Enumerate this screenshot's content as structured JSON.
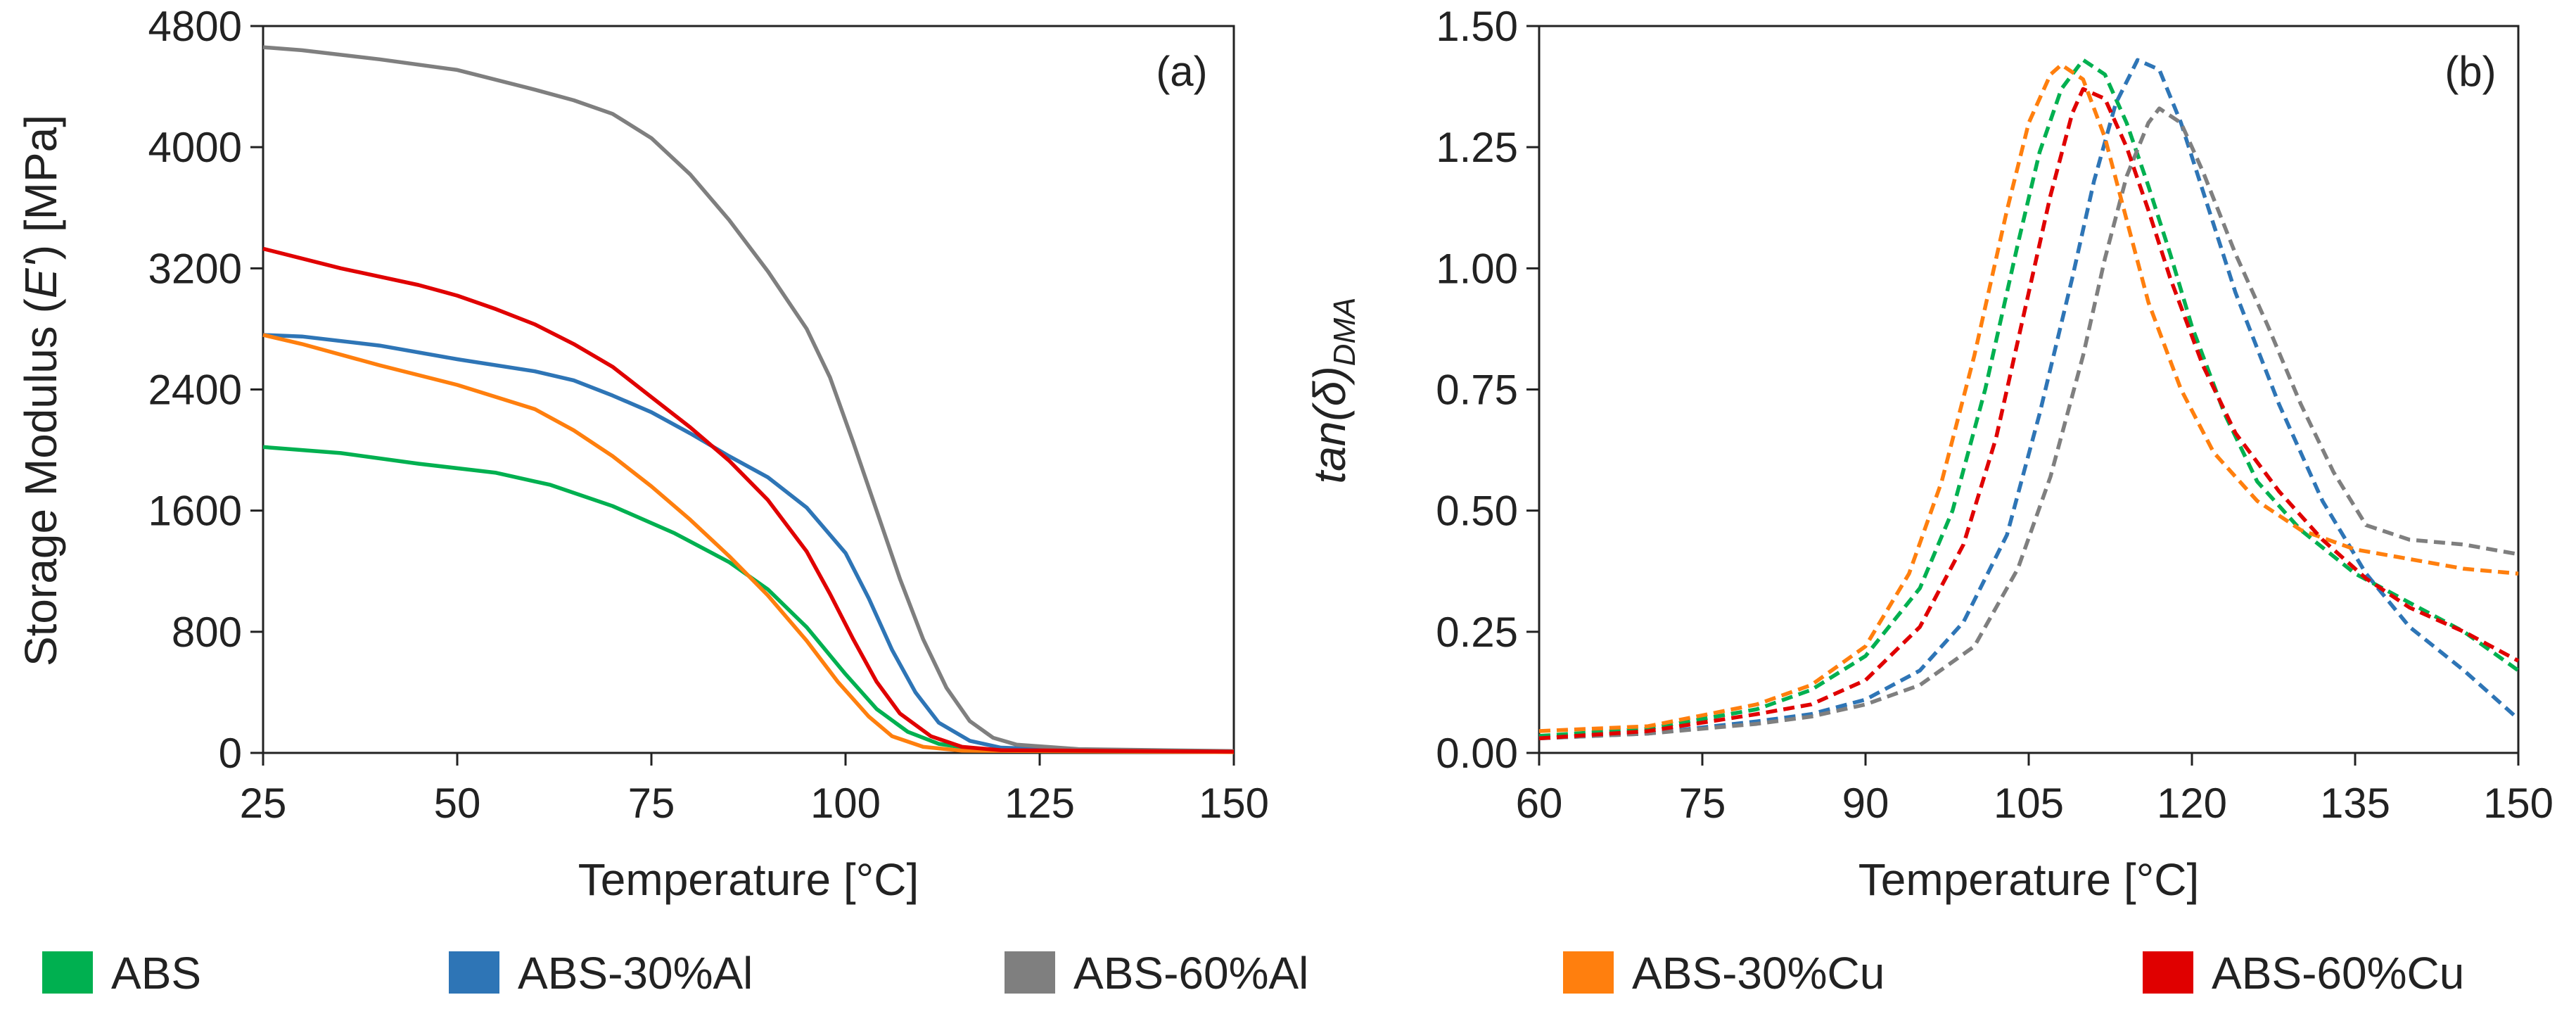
{
  "legend": [
    {
      "name": "ABS",
      "color": "#00b050"
    },
    {
      "name": "ABS-30%Al",
      "color": "#2e75b6"
    },
    {
      "name": "ABS-60%Al",
      "color": "#7f7f7f"
    },
    {
      "name": "ABS-30%Cu",
      "color": "#ff7f0e"
    },
    {
      "name": "ABS-60%Cu",
      "color": "#e00000"
    }
  ],
  "chart_data": [
    {
      "panel_label": "(a)",
      "type": "line",
      "line_style": "solid",
      "xlabel": "Temperature [°C]",
      "ylabel": "Storage Modulus (E') [MPa]",
      "xlim": [
        25,
        150
      ],
      "ylim": [
        0,
        4800
      ],
      "xticks": [
        25,
        50,
        75,
        100,
        125,
        150
      ],
      "yticks": [
        0,
        800,
        1600,
        2400,
        3200,
        4000,
        4800
      ],
      "grid": false,
      "series": [
        {
          "name": "ABS",
          "color": "#00b050",
          "points": [
            [
              25,
              2020
            ],
            [
              35,
              1980
            ],
            [
              45,
              1910
            ],
            [
              55,
              1850
            ],
            [
              62,
              1770
            ],
            [
              70,
              1630
            ],
            [
              78,
              1450
            ],
            [
              85,
              1260
            ],
            [
              90,
              1080
            ],
            [
              95,
              830
            ],
            [
              100,
              520
            ],
            [
              104,
              290
            ],
            [
              108,
              140
            ],
            [
              112,
              60
            ],
            [
              117,
              22
            ],
            [
              125,
              12
            ],
            [
              150,
              8
            ]
          ]
        },
        {
          "name": "ABS-30%Al",
          "color": "#2e75b6",
          "points": [
            [
              25,
              2760
            ],
            [
              30,
              2750
            ],
            [
              40,
              2690
            ],
            [
              50,
              2600
            ],
            [
              60,
              2520
            ],
            [
              65,
              2460
            ],
            [
              70,
              2360
            ],
            [
              75,
              2250
            ],
            [
              80,
              2110
            ],
            [
              85,
              1960
            ],
            [
              90,
              1820
            ],
            [
              95,
              1620
            ],
            [
              100,
              1320
            ],
            [
              103,
              1020
            ],
            [
              106,
              680
            ],
            [
              109,
              400
            ],
            [
              112,
              200
            ],
            [
              116,
              80
            ],
            [
              120,
              35
            ],
            [
              130,
              18
            ],
            [
              150,
              10
            ]
          ]
        },
        {
          "name": "ABS-60%Al",
          "color": "#7f7f7f",
          "points": [
            [
              25,
              4660
            ],
            [
              30,
              4640
            ],
            [
              40,
              4580
            ],
            [
              50,
              4510
            ],
            [
              60,
              4380
            ],
            [
              65,
              4310
            ],
            [
              70,
              4220
            ],
            [
              75,
              4060
            ],
            [
              80,
              3820
            ],
            [
              85,
              3520
            ],
            [
              90,
              3180
            ],
            [
              95,
              2800
            ],
            [
              98,
              2480
            ],
            [
              101,
              2050
            ],
            [
              104,
              1600
            ],
            [
              107,
              1150
            ],
            [
              110,
              750
            ],
            [
              113,
              430
            ],
            [
              116,
              210
            ],
            [
              119,
              100
            ],
            [
              122,
              55
            ],
            [
              130,
              25
            ],
            [
              150,
              12
            ]
          ]
        },
        {
          "name": "ABS-30%Cu",
          "color": "#ff7f0e",
          "points": [
            [
              25,
              2760
            ],
            [
              30,
              2700
            ],
            [
              40,
              2560
            ],
            [
              50,
              2430
            ],
            [
              60,
              2270
            ],
            [
              65,
              2130
            ],
            [
              70,
              1960
            ],
            [
              75,
              1760
            ],
            [
              80,
              1540
            ],
            [
              85,
              1300
            ],
            [
              90,
              1040
            ],
            [
              95,
              740
            ],
            [
              99,
              470
            ],
            [
              103,
              240
            ],
            [
              106,
              110
            ],
            [
              110,
              40
            ],
            [
              115,
              15
            ],
            [
              150,
              5
            ]
          ]
        },
        {
          "name": "ABS-60%Cu",
          "color": "#e00000",
          "points": [
            [
              25,
              3330
            ],
            [
              35,
              3200
            ],
            [
              45,
              3090
            ],
            [
              50,
              3020
            ],
            [
              55,
              2930
            ],
            [
              60,
              2830
            ],
            [
              65,
              2700
            ],
            [
              70,
              2550
            ],
            [
              75,
              2350
            ],
            [
              80,
              2150
            ],
            [
              85,
              1930
            ],
            [
              90,
              1670
            ],
            [
              95,
              1330
            ],
            [
              98,
              1050
            ],
            [
              101,
              750
            ],
            [
              104,
              470
            ],
            [
              107,
              260
            ],
            [
              111,
              110
            ],
            [
              115,
              40
            ],
            [
              120,
              18
            ],
            [
              150,
              8
            ]
          ]
        }
      ]
    },
    {
      "panel_label": "(b)",
      "type": "line",
      "line_style": "dashed",
      "xlabel": "Temperature [°C]",
      "ylabel": "tan(δ)",
      "ylabel_subscript": "DMA",
      "xlim": [
        60,
        150
      ],
      "ylim": [
        0,
        1.5
      ],
      "xticks": [
        60,
        75,
        90,
        105,
        120,
        135,
        150
      ],
      "yticks": [
        0.0,
        0.25,
        0.5,
        0.75,
        1.0,
        1.25,
        1.5
      ],
      "grid": false,
      "series": [
        {
          "name": "ABS",
          "color": "#00b050",
          "points": [
            [
              60,
              0.035
            ],
            [
              70,
              0.05
            ],
            [
              80,
              0.09
            ],
            [
              85,
              0.13
            ],
            [
              90,
              0.2
            ],
            [
              95,
              0.34
            ],
            [
              98,
              0.5
            ],
            [
              101,
              0.75
            ],
            [
              104,
              1.05
            ],
            [
              106,
              1.24
            ],
            [
              108,
              1.37
            ],
            [
              110,
              1.43
            ],
            [
              112,
              1.4
            ],
            [
              114,
              1.3
            ],
            [
              116,
              1.17
            ],
            [
              118,
              1.03
            ],
            [
              120,
              0.88
            ],
            [
              123,
              0.7
            ],
            [
              126,
              0.56
            ],
            [
              130,
              0.46
            ],
            [
              135,
              0.37
            ],
            [
              140,
              0.31
            ],
            [
              145,
              0.25
            ],
            [
              150,
              0.17
            ]
          ]
        },
        {
          "name": "ABS-30%Al",
          "color": "#2e75b6",
          "points": [
            [
              60,
              0.03
            ],
            [
              70,
              0.04
            ],
            [
              80,
              0.065
            ],
            [
              85,
              0.08
            ],
            [
              90,
              0.11
            ],
            [
              95,
              0.17
            ],
            [
              99,
              0.27
            ],
            [
              103,
              0.45
            ],
            [
              106,
              0.7
            ],
            [
              109,
              0.98
            ],
            [
              111,
              1.18
            ],
            [
              113,
              1.34
            ],
            [
              115,
              1.43
            ],
            [
              117,
              1.41
            ],
            [
              119,
              1.3
            ],
            [
              121,
              1.16
            ],
            [
              124,
              0.95
            ],
            [
              128,
              0.72
            ],
            [
              132,
              0.52
            ],
            [
              136,
              0.37
            ],
            [
              140,
              0.26
            ],
            [
              145,
              0.17
            ],
            [
              150,
              0.07
            ]
          ]
        },
        {
          "name": "ABS-60%Al",
          "color": "#7f7f7f",
          "points": [
            [
              60,
              0.03
            ],
            [
              70,
              0.04
            ],
            [
              80,
              0.06
            ],
            [
              85,
              0.075
            ],
            [
              90,
              0.1
            ],
            [
              95,
              0.14
            ],
            [
              100,
              0.22
            ],
            [
              104,
              0.38
            ],
            [
              107,
              0.57
            ],
            [
              110,
              0.82
            ],
            [
              112,
              1.02
            ],
            [
              114,
              1.19
            ],
            [
              116,
              1.3
            ],
            [
              117,
              1.33
            ],
            [
              119,
              1.3
            ],
            [
              121,
              1.2
            ],
            [
              124,
              1.03
            ],
            [
              127,
              0.88
            ],
            [
              130,
              0.72
            ],
            [
              133,
              0.58
            ],
            [
              136,
              0.47
            ],
            [
              140,
              0.44
            ],
            [
              145,
              0.43
            ],
            [
              150,
              0.41
            ]
          ]
        },
        {
          "name": "ABS-30%Cu",
          "color": "#ff7f0e",
          "points": [
            [
              60,
              0.045
            ],
            [
              70,
              0.055
            ],
            [
              80,
              0.1
            ],
            [
              85,
              0.14
            ],
            [
              90,
              0.22
            ],
            [
              94,
              0.37
            ],
            [
              97,
              0.56
            ],
            [
              100,
              0.82
            ],
            [
              103,
              1.12
            ],
            [
              105,
              1.3
            ],
            [
              107,
              1.4
            ],
            [
              108,
              1.42
            ],
            [
              110,
              1.39
            ],
            [
              112,
              1.27
            ],
            [
              114,
              1.1
            ],
            [
              116,
              0.93
            ],
            [
              119,
              0.75
            ],
            [
              122,
              0.62
            ],
            [
              126,
              0.52
            ],
            [
              130,
              0.46
            ],
            [
              135,
              0.42
            ],
            [
              140,
              0.4
            ],
            [
              145,
              0.38
            ],
            [
              150,
              0.37
            ]
          ]
        },
        {
          "name": "ABS-60%Cu",
          "color": "#e00000",
          "points": [
            [
              60,
              0.03
            ],
            [
              70,
              0.045
            ],
            [
              80,
              0.08
            ],
            [
              85,
              0.1
            ],
            [
              90,
              0.15
            ],
            [
              95,
              0.26
            ],
            [
              99,
              0.43
            ],
            [
              102,
              0.65
            ],
            [
              105,
              0.95
            ],
            [
              107,
              1.15
            ],
            [
              109,
              1.32
            ],
            [
              110,
              1.37
            ],
            [
              112,
              1.35
            ],
            [
              114,
              1.25
            ],
            [
              116,
              1.12
            ],
            [
              118,
              0.98
            ],
            [
              121,
              0.8
            ],
            [
              124,
              0.66
            ],
            [
              128,
              0.54
            ],
            [
              132,
              0.44
            ],
            [
              136,
              0.36
            ],
            [
              140,
              0.3
            ],
            [
              145,
              0.25
            ],
            [
              150,
              0.19
            ]
          ]
        }
      ]
    }
  ]
}
